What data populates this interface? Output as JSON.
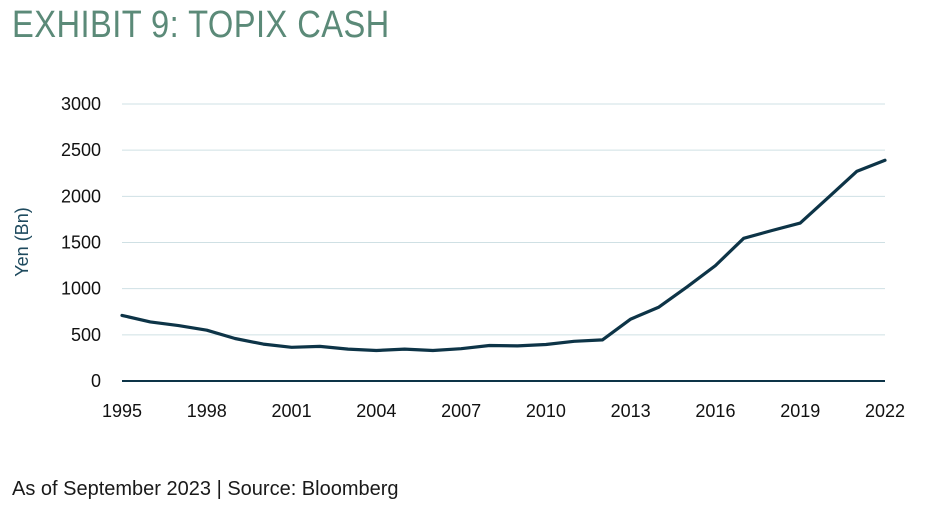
{
  "title": "EXHIBIT 9: TOPIX CASH",
  "source": "As of September 2023 | Source: Bloomberg",
  "chart_data": {
    "type": "line",
    "title": "EXHIBIT 9: TOPIX CASH",
    "xlabel": "",
    "ylabel": "Yen (Bn)",
    "xlim": [
      1995,
      2022
    ],
    "ylim": [
      0,
      3000
    ],
    "x_ticks": [
      1995,
      1998,
      2001,
      2004,
      2007,
      2010,
      2013,
      2016,
      2019,
      2022
    ],
    "y_ticks": [
      0,
      500,
      1000,
      1500,
      2000,
      2500,
      3000
    ],
    "grid": true,
    "legend": "none",
    "line_color": "#0d3447",
    "grid_color": "#cfe0e4",
    "series": [
      {
        "x": [
          1995,
          1996,
          1997,
          1998,
          1999,
          2000,
          2001,
          2002,
          2003,
          2004,
          2005,
          2006,
          2007,
          2008,
          2009,
          2010,
          2011,
          2012,
          2013,
          2014,
          2015,
          2016,
          2017,
          2018,
          2019,
          2020,
          2021,
          2022
        ],
        "values": [
          710,
          640,
          600,
          550,
          460,
          400,
          365,
          375,
          345,
          330,
          345,
          330,
          350,
          385,
          380,
          395,
          430,
          445,
          670,
          800,
          1020,
          1250,
          1545,
          1630,
          1710,
          1990,
          2270,
          2390
        ]
      }
    ]
  }
}
